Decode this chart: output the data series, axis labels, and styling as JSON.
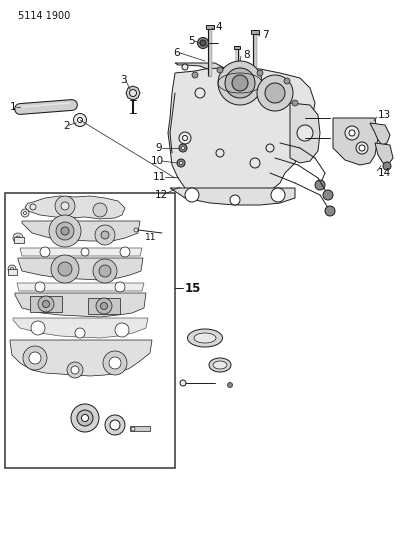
{
  "title": "5114 1900",
  "bg_color": "#ffffff",
  "fig_width": 4.1,
  "fig_height": 5.33,
  "dpi": 100,
  "line_color": "#1a1a1a",
  "label_color": "#111111",
  "label_fontsize": 7.5,
  "header_fontsize": 7,
  "lw_main": 0.7,
  "lw_thick": 1.1,
  "lw_thin": 0.5,
  "gray_fill": "#c8c8c8",
  "light_fill": "#e8e8e8",
  "white_fill": "#ffffff"
}
